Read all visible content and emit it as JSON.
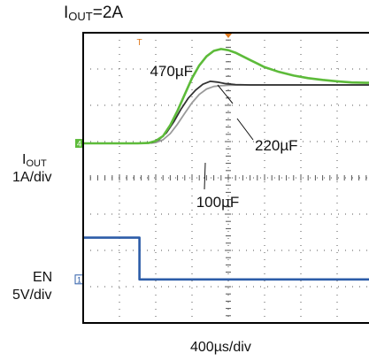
{
  "chart_data": {
    "type": "line",
    "title": "I",
    "title_sub": "OUT",
    "title_suffix": "=2A",
    "xlabel": "400µs/div",
    "channels": [
      {
        "name": "I",
        "name_sub": "OUT",
        "scale": "1A/div",
        "marker": "4"
      },
      {
        "name": "EN",
        "scale": "5V/div",
        "marker": "1"
      }
    ],
    "grid": true,
    "x_range": [
      0,
      8
    ],
    "y_range": [
      0,
      8
    ],
    "series": [
      {
        "name": "470µF",
        "color": "#5dbb3a",
        "x": [
          0,
          1.5,
          1.8,
          2.0,
          2.2,
          2.4,
          2.6,
          2.8,
          3.0,
          3.2,
          3.4,
          3.6,
          3.8,
          4.0,
          4.2,
          4.4,
          4.6,
          4.8,
          5.0,
          5.4,
          5.8,
          6.2,
          6.6,
          7.0,
          7.4,
          7.8,
          8.0
        ],
        "y": [
          4.95,
          4.95,
          4.96,
          5.02,
          5.15,
          5.45,
          5.85,
          6.3,
          6.75,
          7.1,
          7.35,
          7.5,
          7.55,
          7.52,
          7.45,
          7.35,
          7.25,
          7.15,
          7.05,
          6.92,
          6.82,
          6.75,
          6.7,
          6.66,
          6.63,
          6.62,
          6.62
        ]
      },
      {
        "name": "220µF",
        "color": "#333333",
        "x": [
          0,
          1.6,
          1.9,
          2.1,
          2.3,
          2.5,
          2.7,
          2.9,
          3.1,
          3.3,
          3.5,
          3.7,
          3.9,
          4.2,
          4.6,
          5.0,
          6.0,
          7.0,
          8.0
        ],
        "y": [
          4.95,
          4.95,
          4.97,
          5.06,
          5.25,
          5.55,
          5.9,
          6.2,
          6.42,
          6.58,
          6.66,
          6.64,
          6.6,
          6.57,
          6.56,
          6.56,
          6.56,
          6.56,
          6.56
        ]
      },
      {
        "name": "100µF",
        "color": "#9a9a9a",
        "x": [
          0,
          1.7,
          2.0,
          2.2,
          2.4,
          2.6,
          2.8,
          3.0,
          3.2,
          3.4,
          3.6,
          3.8,
          4.0,
          4.4,
          5.0,
          6.0,
          7.0,
          8.0
        ],
        "y": [
          4.95,
          4.95,
          4.97,
          5.05,
          5.22,
          5.48,
          5.78,
          6.07,
          6.3,
          6.45,
          6.52,
          6.54,
          6.55,
          6.56,
          6.56,
          6.56,
          6.56,
          6.56
        ]
      },
      {
        "name": "EN",
        "color": "#2c5ca8",
        "x": [
          0,
          1.55,
          1.55,
          8.0
        ],
        "y": [
          2.35,
          2.35,
          1.2,
          1.2
        ]
      }
    ],
    "annotations": [
      {
        "text": "470µF",
        "series": "470µF"
      },
      {
        "text": "220µF",
        "series": "220µF"
      },
      {
        "text": "100µF",
        "series": "100µF"
      }
    ],
    "trigger_marker": "T"
  }
}
